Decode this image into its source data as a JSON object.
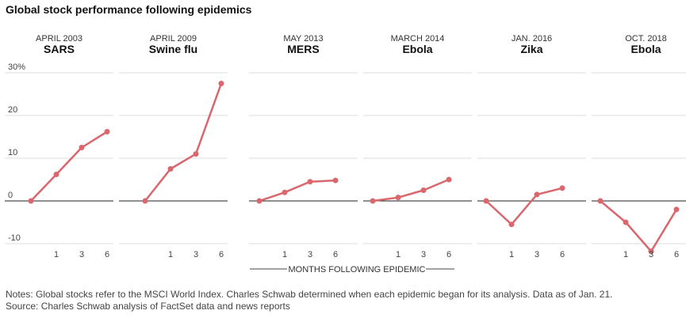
{
  "title": "Global stock performance following epidemics",
  "notes": "Notes: Global stocks refer to the MSCI World Index. Charles Schwab determined when each epidemic began for its analysis. Data as of Jan. 21.",
  "source": "Source: Charles Schwab analysis of FactSet data and news reports",
  "colors": {
    "line": "#d9676d",
    "grid": "#dddddd",
    "zero": "#222222"
  },
  "chart_data": {
    "type": "line",
    "title": "Global stock performance following epidemics",
    "xlabel": "MONTHS FOLLOWING EPIDEMIC",
    "ylabel": "",
    "x": [
      0,
      1,
      3,
      6
    ],
    "x_tick_labels": [
      "1",
      "3",
      "6"
    ],
    "ylim": [
      -10,
      30
    ],
    "y_ticks": [
      -10,
      0,
      10,
      20,
      30
    ],
    "y_tick_labels": [
      "-10",
      "0",
      "10",
      "20",
      "30%"
    ],
    "grid": true,
    "panels": [
      {
        "date": "APRIL 2003",
        "name": "SARS",
        "values": [
          0,
          6.2,
          12.5,
          16.2
        ]
      },
      {
        "date": "APRIL 2009",
        "name": "Swine flu",
        "values": [
          0,
          7.5,
          11,
          27.5
        ]
      },
      {
        "date": "MAY 2013",
        "name": "MERS",
        "values": [
          0,
          2,
          4.5,
          4.8
        ]
      },
      {
        "date": "MARCH 2014",
        "name": "Ebola",
        "values": [
          0,
          0.8,
          2.5,
          5
        ]
      },
      {
        "date": "JAN. 2016",
        "name": "Zika",
        "values": [
          0,
          -5.5,
          1.5,
          3
        ]
      },
      {
        "date": "OCT. 2018",
        "name": "Ebola",
        "values": [
          0,
          -5,
          -11.8,
          -2
        ]
      }
    ]
  }
}
